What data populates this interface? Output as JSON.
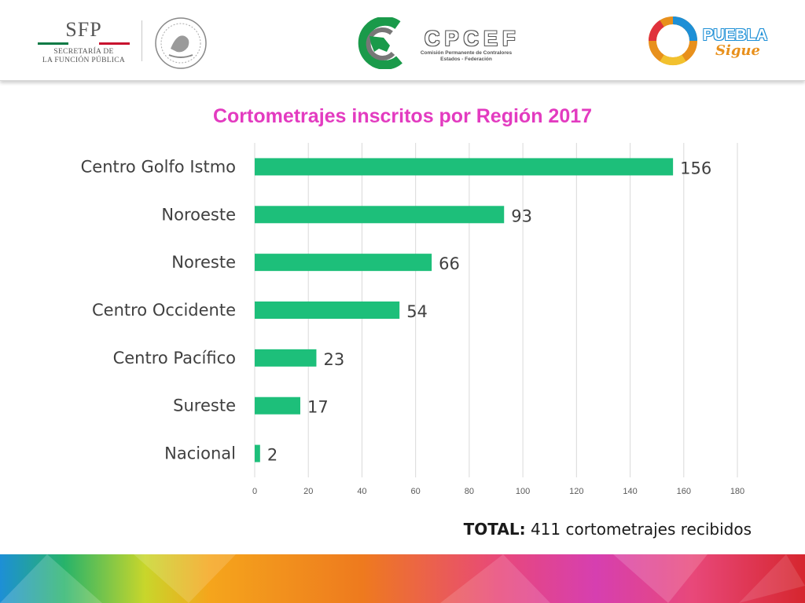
{
  "header": {
    "sfp_title": "SFP",
    "sfp_line1": "SECRETARÍA DE",
    "sfp_line2": "LA FUNCIÓN PÚBLICA",
    "cpcef_name": "CPCEF",
    "cpcef_line1": "Comisión Permanente de Contralores",
    "cpcef_line2": "Estados - Federación",
    "puebla_word": "PUEBLA",
    "puebla_sigue": "Sigue",
    "colors": {
      "green": "#0b7a45",
      "red": "#c8102e",
      "gray": "#555555"
    }
  },
  "chart_data": {
    "type": "bar",
    "orientation": "horizontal",
    "title": "Cortometrajes inscritos por Región 2017",
    "categories": [
      "Centro Golfo Istmo",
      "Noroeste",
      "Noreste",
      "Centro Occidente",
      "Centro Pacífico",
      "Sureste",
      "Nacional"
    ],
    "values": [
      156,
      93,
      66,
      54,
      23,
      17,
      2
    ],
    "xlim": [
      0,
      180
    ],
    "xticks": [
      0,
      20,
      40,
      60,
      80,
      100,
      120,
      140,
      160,
      180
    ],
    "grid": true,
    "data_labels": true,
    "legend": "none",
    "bar_color": "#1dbf7a"
  },
  "summary": {
    "label": "TOTAL:",
    "text": "411 cortometrajes recibidos"
  }
}
